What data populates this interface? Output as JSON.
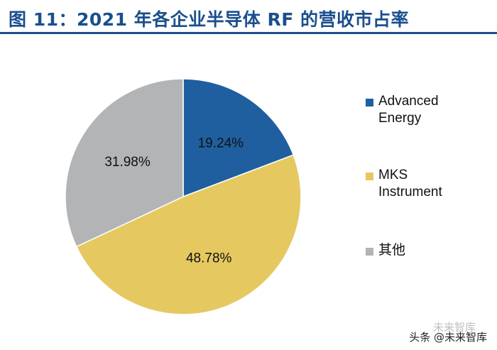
{
  "title": "图 11：2021 年各企业半导体 RF 的营收市占率",
  "chart_data": {
    "type": "pie",
    "title": "",
    "slices": [
      {
        "label": "Advanced Energy",
        "value": 19.24,
        "display": "19.24%",
        "color": "#1f5f9f"
      },
      {
        "label": "MKS Instrument",
        "value": 48.78,
        "display": "48.78%",
        "color": "#e6c860"
      },
      {
        "label": "其他",
        "value": 31.98,
        "display": "31.98%",
        "color": "#b3b4b6"
      }
    ],
    "legend_placement": "right"
  },
  "legend": [
    {
      "line1": "Advanced",
      "line2": "Energy",
      "color": "#1f5f9f"
    },
    {
      "line1": "MKS",
      "line2": "Instrument",
      "color": "#e6c860"
    },
    {
      "line1": "其他",
      "line2": "",
      "color": "#b3b4b6"
    }
  ],
  "watermark": {
    "logo_text": "未来智库",
    "text": "头条 @未来智库"
  }
}
